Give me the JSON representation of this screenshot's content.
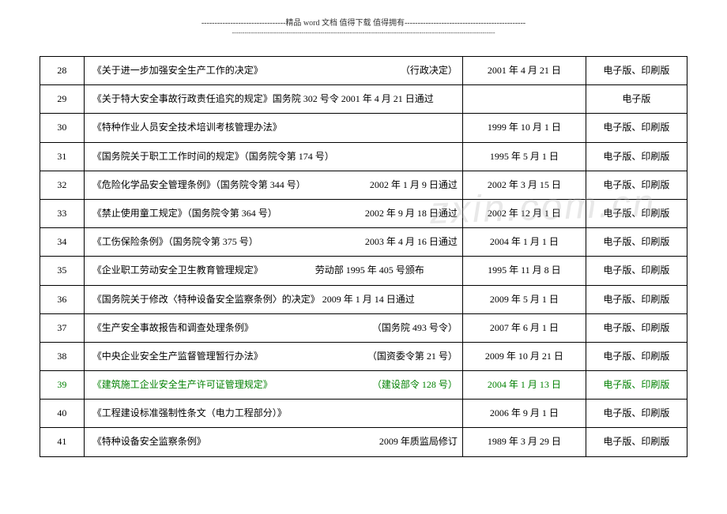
{
  "header": {
    "line1": "--------------------------------精品 word 文档  值得下载  值得拥有----------------------------------------------",
    "line2": "-----------------------------------------------------------------------------------------------------------------------------"
  },
  "watermark": "zxin.com.cn",
  "rows": [
    {
      "num": "28",
      "title_left": "《关于进一步加强安全生产工作的决定》",
      "title_right": "（行政决定）",
      "date": "2001 年 4 月 21 日",
      "format": "电子版、印刷版",
      "green": false
    },
    {
      "num": "29",
      "title_left": "《关于特大安全事故行政责任追究的规定》国务院 302 号令 2001 年 4 月 21 日通过",
      "title_right": "",
      "date": "",
      "format": "电子版",
      "green": false
    },
    {
      "num": "30",
      "title_left": "《特种作业人员安全技术培训考核管理办法》",
      "title_right": "",
      "date": "1999 年 10 月 1 日",
      "format": "电子版、印刷版",
      "green": false
    },
    {
      "num": "31",
      "title_left": "《国务院关于职工工作时间的规定》（国务院令第 174 号）",
      "title_right": "",
      "date": "1995 年 5 月 1 日",
      "format": "电子版、印刷版",
      "green": false
    },
    {
      "num": "32",
      "title_left": "《危险化学品安全管理条例》（国务院令第 344 号）",
      "title_right": "2002 年 1 月 9 日通过",
      "date": "2002 年 3 月 15 日",
      "format": "电子版、印刷版",
      "green": false
    },
    {
      "num": "33",
      "title_left": "《禁止使用童工规定》（国务院令第 364 号）",
      "title_right": "2002 年 9 月 18 日通过",
      "date": "2002 年 12 月 1 日",
      "format": "电子版、印刷版",
      "green": false
    },
    {
      "num": "34",
      "title_left": "《工伤保险条例》（国务院令第 375 号）",
      "title_right": "2003 年 4 月 16 日通过",
      "date": "2004 年 1 月 1 日",
      "format": "电子版、印刷版",
      "green": false
    },
    {
      "num": "35",
      "title_left": "《企业职工劳动安全卫生教育管理规定》　　　　　　劳动部 1995 年 405 号颁布",
      "title_right": "",
      "date": "1995 年 11 月 8 日",
      "format": "电子版、印刷版",
      "green": false
    },
    {
      "num": "36",
      "title_left": "《国务院关于修改〈特种设备安全监察条例〉的决定》 2009 年 1 月 14 日通过",
      "title_right": "",
      "date": "2009 年 5 月 1 日",
      "format": "电子版、印刷版",
      "green": false
    },
    {
      "num": "37",
      "title_left": "《生产安全事故报告和调查处理条例》",
      "title_right": "（国务院 493 号令）",
      "date": "2007 年 6 月 1 日",
      "format": "电子版、印刷版",
      "green": false
    },
    {
      "num": "38",
      "title_left": "《中央企业安全生产监督管理暂行办法》",
      "title_right": "（国资委令第 21 号）",
      "date": "2009 年 10 月 21 日",
      "format": "电子版、印刷版",
      "green": false
    },
    {
      "num": "39",
      "title_left": "《建筑施工企业安全生产许可证管理规定》",
      "title_right": "（建设部令 128 号）",
      "date": "2004 年 1 月 13 日",
      "format": "电子版、印刷版",
      "green": true
    },
    {
      "num": "40",
      "title_left": "《工程建设标准强制性条文（电力工程部分）》",
      "title_right": "",
      "date": "2006 年 9 月 1 日",
      "format": "电子版、印刷版",
      "green": false
    },
    {
      "num": "41",
      "title_left": "《特种设备安全监察条例》",
      "title_right": "2009 年质监局修订",
      "date": "1989 年 3 月 29 日",
      "format": "电子版、印刷版",
      "green": false
    }
  ]
}
